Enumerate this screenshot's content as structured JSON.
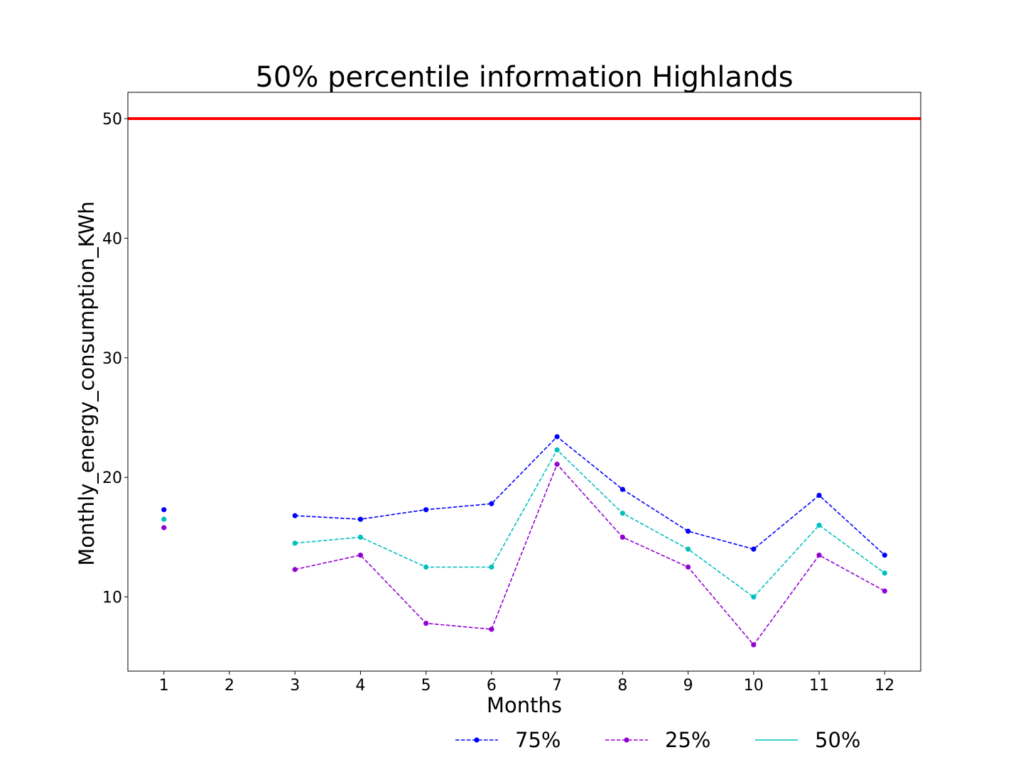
{
  "chart_data": {
    "type": "line",
    "title": "50% percentile information Highlands",
    "xlabel": "Months",
    "ylabel": "Monthly_energy_consumption_KWh",
    "xlim": [
      0.45,
      12.55
    ],
    "ylim": [
      3.8,
      52.2
    ],
    "x_ticks": [
      1,
      2,
      3,
      4,
      5,
      6,
      7,
      8,
      9,
      10,
      11,
      12
    ],
    "y_ticks": [
      10,
      20,
      30,
      40,
      50
    ],
    "grid": false,
    "legend_position": "bottom-right",
    "reference_line": {
      "y": 50,
      "color": "#ff0000"
    },
    "x": [
      1,
      2,
      3,
      4,
      5,
      6,
      7,
      8,
      9,
      10,
      11,
      12
    ],
    "series": [
      {
        "name": "75%",
        "color": "#0000ff",
        "linestyle": "dashed",
        "marker": true,
        "values": [
          17.3,
          null,
          16.8,
          16.5,
          17.3,
          17.8,
          23.4,
          19.0,
          15.5,
          14.0,
          18.5,
          13.5
        ]
      },
      {
        "name": "25%",
        "color": "#9400d3",
        "linestyle": "dashed",
        "marker": true,
        "values": [
          15.8,
          null,
          12.3,
          13.5,
          7.8,
          7.3,
          21.1,
          15.0,
          12.5,
          6.0,
          13.5,
          10.5
        ]
      },
      {
        "name": "50%",
        "color": "#00bfbf",
        "linestyle": "dashed",
        "marker": true,
        "values": [
          16.5,
          null,
          14.5,
          15.0,
          12.5,
          12.5,
          22.3,
          17.0,
          14.0,
          10.0,
          16.0,
          12.0
        ]
      }
    ],
    "legend": [
      {
        "label": "75%",
        "color": "#0000ff",
        "linestyle": "dashed",
        "marker": true
      },
      {
        "label": "25%",
        "color": "#9400d3",
        "linestyle": "dashed",
        "marker": true
      },
      {
        "label": "50%",
        "color": "#00bfbf",
        "linestyle": "solid",
        "marker": false
      }
    ]
  }
}
